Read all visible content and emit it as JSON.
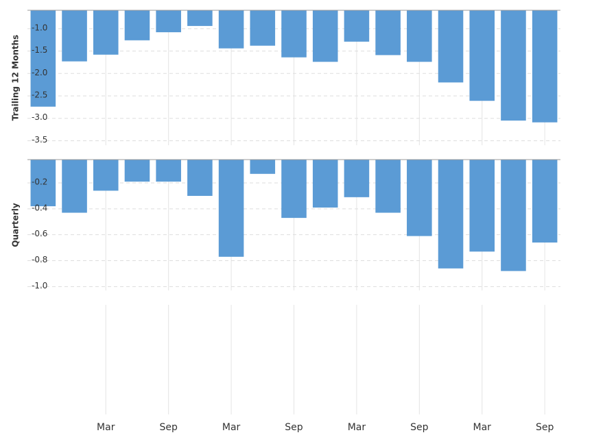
{
  "chart_data": [
    {
      "type": "bar",
      "y_label": "Trailing 12 Months",
      "color": "#5b9bd5",
      "values": [
        -2.74,
        -1.73,
        -1.58,
        -1.26,
        -1.08,
        -0.94,
        -1.44,
        -1.38,
        -1.64,
        -1.74,
        -1.29,
        -1.59,
        -1.74,
        -2.2,
        -2.61,
        -3.05,
        -3.09
      ],
      "ylim": [
        -3.6,
        -0.59
      ],
      "yticks": [
        {
          "value": -1,
          "label": "-1.0"
        },
        -1.5,
        {
          "value": -2,
          "label": "-2.0"
        },
        -2.5,
        {
          "value": -3,
          "label": "-3.0"
        },
        -3.5
      ],
      "grid": true
    },
    {
      "type": "bar",
      "y_label": "Quarterly",
      "color": "#5b9bd5",
      "categories": [
        null,
        null,
        "Mar",
        null,
        "Sep",
        null,
        "Mar",
        null,
        "Sep",
        null,
        "Mar",
        null,
        "Sep",
        null,
        "Mar",
        null,
        "Sep"
      ],
      "values": [
        -0.38,
        -0.43,
        -0.26,
        -0.19,
        -0.19,
        -0.3,
        -0.77,
        -0.13,
        -0.47,
        -0.39,
        -0.31,
        -0.43,
        -0.61,
        -0.86,
        -0.73,
        -0.88,
        -0.66
      ],
      "ylim": [
        -1.03,
        -0.02
      ],
      "yticks": [
        -0.2,
        -0.4,
        -0.6,
        -0.8,
        {
          "value": -1,
          "label": "-1.0"
        }
      ],
      "grid": true
    }
  ]
}
